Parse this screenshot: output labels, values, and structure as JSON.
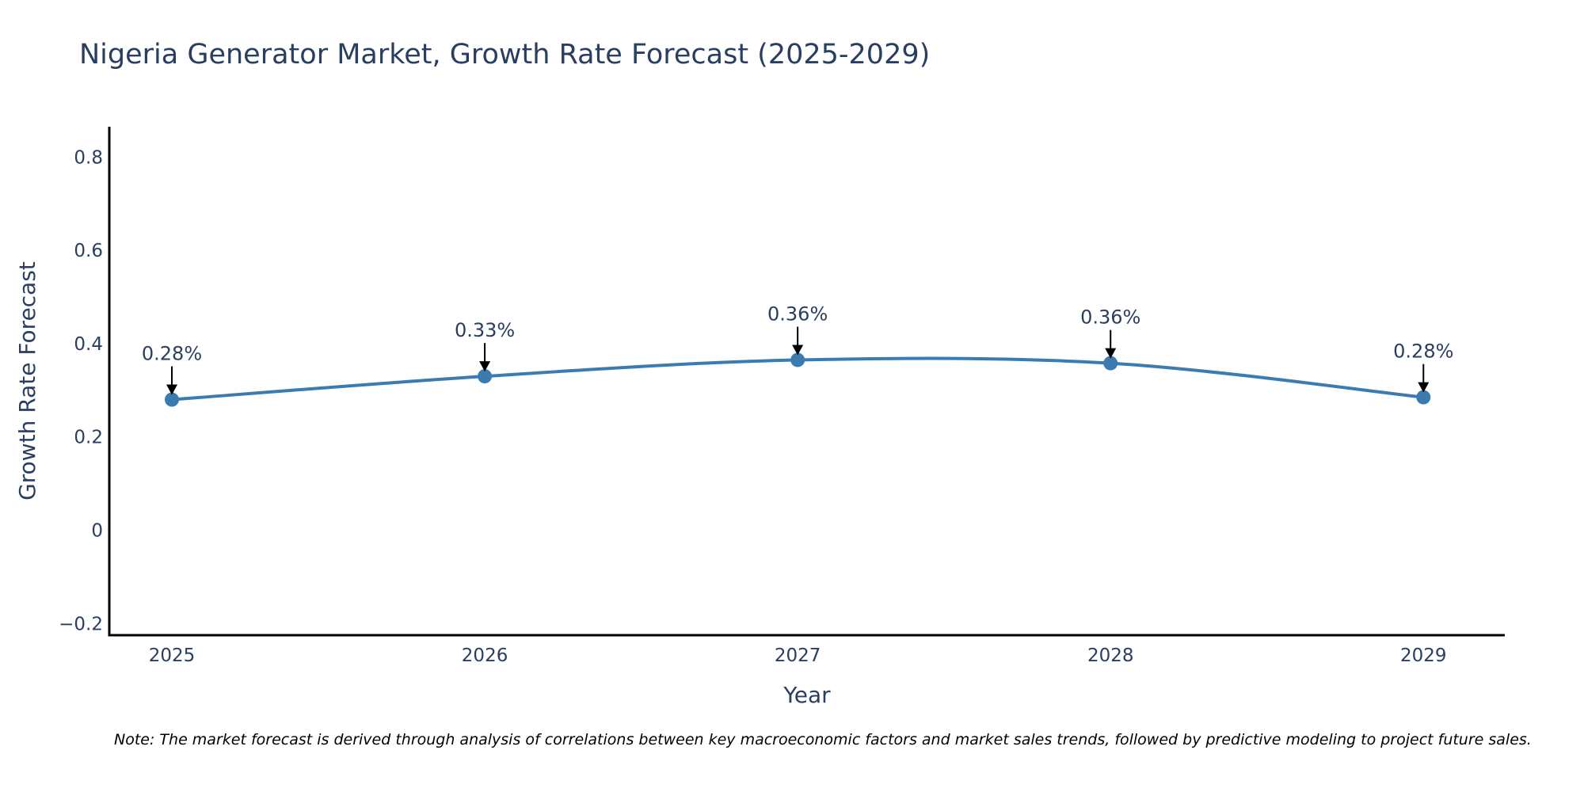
{
  "chart_data": {
    "type": "line",
    "title": "Nigeria Generator Market, Growth Rate Forecast (2025-2029)",
    "xlabel": "Year",
    "ylabel": "Growth Rate Forecast",
    "categories": [
      "2025",
      "2026",
      "2027",
      "2028",
      "2029"
    ],
    "x": [
      2025,
      2026,
      2027,
      2028,
      2029
    ],
    "series": [
      {
        "name": "Growth Rate Forecast",
        "values": [
          0.28,
          0.33,
          0.365,
          0.358,
          0.285
        ],
        "labels": [
          "0.28%",
          "0.33%",
          "0.36%",
          "0.36%",
          "0.28%"
        ],
        "color": "#3b7bb0"
      }
    ],
    "ylim": [
      -0.225,
      0.865
    ],
    "xlim": [
      2024.8,
      2029.26
    ],
    "yticks": [
      -0.2,
      0,
      0.2,
      0.4,
      0.6,
      0.8
    ],
    "ytick_labels": [
      "−0.2",
      "0",
      "0.2",
      "0.4",
      "0.6",
      "0.8"
    ],
    "grid": false,
    "legend": "none",
    "line_shape": "spline"
  },
  "note": "Note: The market forecast is derived through analysis of correlations between key macroeconomic factors and market sales trends, followed by predictive modeling to project future sales.",
  "colors": {
    "text": "#2a3f5f",
    "axis": "#000000",
    "line": "#3b7bb0",
    "background": "#ffffff"
  }
}
